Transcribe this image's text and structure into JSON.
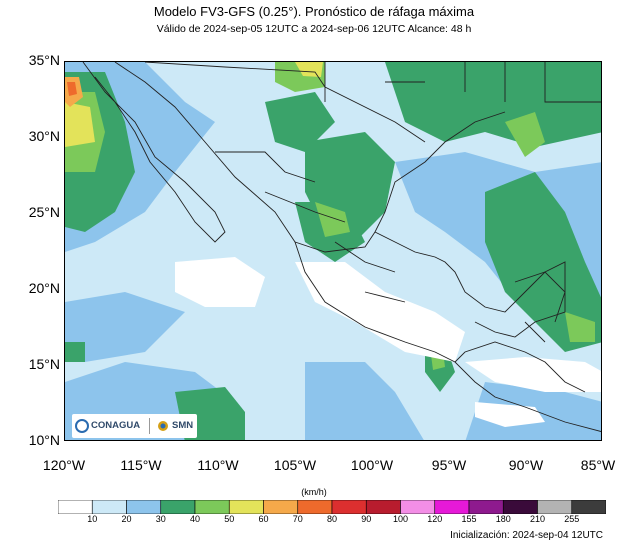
{
  "title": "Modelo FV3-GFS (0.25°). Pronóstico de ráfaga máxima",
  "subtitle": "Válido de 2024-sep-05 12UTC a 2024-sep-06 12UTC    Alcance: 48 h",
  "y_axis_labels": [
    "35°N",
    "30°N",
    "25°N",
    "20°N",
    "15°N",
    "10°N"
  ],
  "x_axis_labels": [
    "120°W",
    "115°W",
    "110°W",
    "105°W",
    "100°W",
    "95°W",
    "90°W",
    "85°W"
  ],
  "extent": {
    "lon_min": -120,
    "lon_max": -85,
    "lat_min": 10,
    "lat_max": 35
  },
  "colorbar": {
    "unit_label": "(km/h)",
    "ticks": [
      "10",
      "20",
      "30",
      "40",
      "50",
      "60",
      "70",
      "80",
      "90",
      "100",
      "120",
      "155",
      "180",
      "210",
      "255"
    ],
    "colors": [
      "#ffffff",
      "#cde9f7",
      "#8dc4ec",
      "#3aa36a",
      "#7cc95a",
      "#e3e35a",
      "#f5a94a",
      "#ee6a2c",
      "#dc2f2f",
      "#b81c2e",
      "#f38ee6",
      "#e619d8",
      "#8e1a8e",
      "#3a0a3a",
      "#b3b3b3",
      "#3c3c3c"
    ]
  },
  "init_text": "Inicialización: 2024-sep-04 12UTC",
  "logos": {
    "conagua": "CONAGUA",
    "smn": "SMN"
  }
}
